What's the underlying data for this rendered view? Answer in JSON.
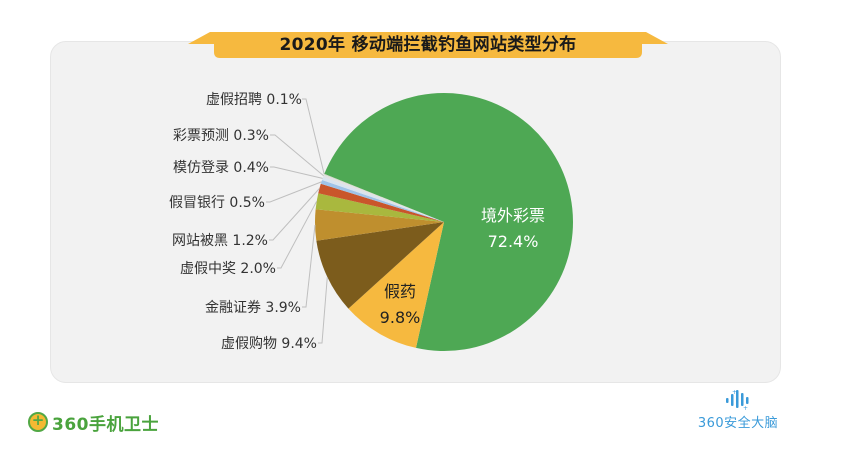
{
  "title": "2020年 移动端拦截钓鱼网站类型分布",
  "colors": {
    "banner": "#f6b93f",
    "panel": "#f2f2f2",
    "leader_line": "#bfbfbf"
  },
  "chart_data": {
    "type": "pie",
    "title": "2020年 移动端拦截钓鱼网站类型分布",
    "start_angle_deg_clockwise_from_top": 291.9,
    "direction": "clockwise",
    "slices": [
      {
        "label": "境外彩票",
        "value": 72.4,
        "display": "72.4%",
        "color": "#4ea854",
        "label_position": "inside"
      },
      {
        "label": "假药",
        "value": 9.8,
        "display": "9.8%",
        "color": "#f6b93f",
        "label_position": "inside"
      },
      {
        "label": "虚假购物",
        "value": 9.4,
        "display": "9.4%",
        "color": "#7c5c1c",
        "label_position": "outside"
      },
      {
        "label": "金融证券",
        "value": 3.9,
        "display": "3.9%",
        "color": "#bf8f2e",
        "label_position": "outside"
      },
      {
        "label": "虚假中奖",
        "value": 2.0,
        "display": "2.0%",
        "color": "#a9b83e",
        "label_position": "outside"
      },
      {
        "label": "网站被黑",
        "value": 1.2,
        "display": "1.2%",
        "color": "#c9562b",
        "label_position": "outside"
      },
      {
        "label": "假冒银行",
        "value": 0.5,
        "display": "0.5%",
        "color": "#9fc3e8",
        "label_position": "outside"
      },
      {
        "label": "模仿登录",
        "value": 0.4,
        "display": "0.4%",
        "color": "#d9e4ef",
        "label_position": "outside"
      },
      {
        "label": "彩票预测",
        "value": 0.3,
        "display": "0.3%",
        "color": "#e2e2e2",
        "label_position": "outside"
      },
      {
        "label": "虚假招聘",
        "value": 0.1,
        "display": "0.1%",
        "color": "#cfd8c4",
        "label_position": "outside"
      }
    ],
    "outside_labels": [
      "虚假招聘 0.1%",
      "彩票预测 0.3%",
      "模仿登录 0.4%",
      "假冒银行 0.5%",
      "网站被黑 1.2%",
      "虚假中奖 2.0%",
      "金融证券 3.9%",
      "虚假购物 9.4%"
    ],
    "inside_labels": {
      "jingwai": {
        "name": "境外彩票",
        "pct": "72.4%"
      },
      "jiayao": {
        "name": "假药",
        "pct": "9.8%"
      }
    },
    "legend": "none"
  },
  "footer": {
    "left_logo_text": "360手机卫士",
    "right_logo_text": "360安全大脑"
  }
}
